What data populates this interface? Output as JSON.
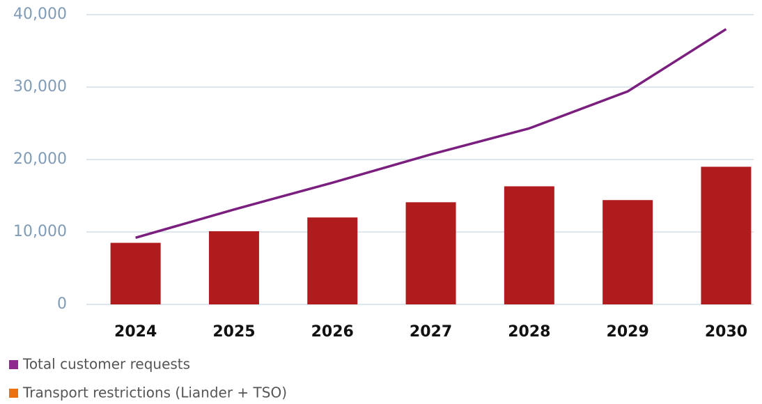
{
  "chart_data": {
    "type": "bar",
    "categories": [
      "2024",
      "2025",
      "2026",
      "2027",
      "2028",
      "2029",
      "2030"
    ],
    "series": [
      {
        "name": "Total customer requests",
        "type": "line",
        "color": "#7b1f7e",
        "legend_color": "#8e2a8e",
        "values": [
          9200,
          13100,
          16800,
          20700,
          24300,
          29400,
          38000
        ]
      },
      {
        "name": "Transport restrictions (Liander + TSO)",
        "type": "bar",
        "color": "#b01b1e",
        "legend_color": "#ec7211",
        "values": [
          8500,
          10100,
          12000,
          14100,
          16300,
          14400,
          19000
        ]
      }
    ],
    "ylim": [
      0,
      40000
    ],
    "yticks": [
      0,
      {
        "value": 10000,
        "label": "10,000"
      },
      {
        "value": 20000,
        "label": "20,000"
      },
      {
        "value": 30000,
        "label": "30,000"
      },
      {
        "value": 40000,
        "label": "40,000"
      }
    ],
    "grid": true
  }
}
